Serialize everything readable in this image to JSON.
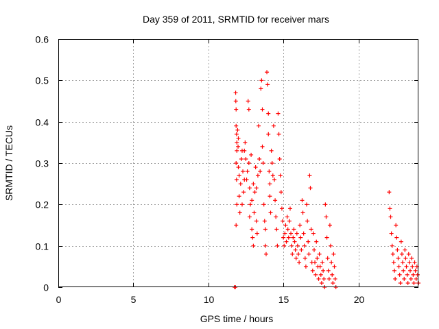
{
  "chart_data": {
    "type": "scatter",
    "title": "Day 359 of 2011, SRMTID for receiver mars",
    "xlabel": "GPS time / hours",
    "ylabel": "SRMTID / TECUs",
    "xlim": [
      0,
      24
    ],
    "ylim": [
      0,
      0.6
    ],
    "xticks": [
      0,
      5,
      10,
      15,
      20
    ],
    "yticks": [
      0,
      0.1,
      0.2,
      0.3,
      0.4,
      0.5,
      0.6
    ],
    "xtick_labels": [
      "0",
      "5",
      "10",
      "15",
      "20"
    ],
    "ytick_labels": [
      "0",
      "0.1",
      "0.2",
      "0.3",
      "0.4",
      "0.5",
      "0.6"
    ],
    "grid": true,
    "legend": "none",
    "marker": "plus",
    "color": "#ff0000",
    "series": [
      {
        "points": [
          [
            11.75,
            0.0
          ],
          [
            11.78,
            0.0
          ],
          [
            11.8,
            0.0
          ],
          [
            11.82,
            0.47
          ],
          [
            11.83,
            0.45
          ],
          [
            11.85,
            0.43
          ],
          [
            11.85,
            0.39
          ],
          [
            11.88,
            0.37
          ],
          [
            11.9,
            0.35
          ],
          [
            11.9,
            0.33
          ],
          [
            11.85,
            0.3
          ],
          [
            11.88,
            0.26
          ],
          [
            11.9,
            0.2
          ],
          [
            11.85,
            0.15
          ],
          [
            11.95,
            0.38
          ],
          [
            11.98,
            0.34
          ],
          [
            12.0,
            0.36
          ],
          [
            12.0,
            0.29
          ],
          [
            12.05,
            0.27
          ],
          [
            12.05,
            0.22
          ],
          [
            12.1,
            0.18
          ],
          [
            12.15,
            0.25
          ],
          [
            12.2,
            0.31
          ],
          [
            12.25,
            0.33
          ],
          [
            12.25,
            0.2
          ],
          [
            12.3,
            0.28
          ],
          [
            12.35,
            0.23
          ],
          [
            12.4,
            0.26
          ],
          [
            12.4,
            0.33
          ],
          [
            12.45,
            0.35
          ],
          [
            12.5,
            0.31
          ],
          [
            12.55,
            0.26
          ],
          [
            12.6,
            0.28
          ],
          [
            12.65,
            0.45
          ],
          [
            12.7,
            0.43
          ],
          [
            12.7,
            0.3
          ],
          [
            12.75,
            0.24
          ],
          [
            12.75,
            0.17
          ],
          [
            12.8,
            0.2
          ],
          [
            12.85,
            0.32
          ],
          [
            12.9,
            0.21
          ],
          [
            12.9,
            0.14
          ],
          [
            12.95,
            0.12
          ],
          [
            13.0,
            0.25
          ],
          [
            13.0,
            0.1
          ],
          [
            13.05,
            0.18
          ],
          [
            13.1,
            0.23
          ],
          [
            13.15,
            0.29
          ],
          [
            13.2,
            0.24
          ],
          [
            13.2,
            0.16
          ],
          [
            13.25,
            0.13
          ],
          [
            13.3,
            0.27
          ],
          [
            13.35,
            0.39
          ],
          [
            13.4,
            0.31
          ],
          [
            13.45,
            0.28
          ],
          [
            13.5,
            0.48
          ],
          [
            13.55,
            0.5
          ],
          [
            13.6,
            0.43
          ],
          [
            13.6,
            0.34
          ],
          [
            13.65,
            0.3
          ],
          [
            13.7,
            0.2
          ],
          [
            13.75,
            0.16
          ],
          [
            13.8,
            0.14
          ],
          [
            13.8,
            0.1
          ],
          [
            13.85,
            0.08
          ],
          [
            13.9,
            0.52
          ],
          [
            13.95,
            0.49
          ],
          [
            14.0,
            0.42
          ],
          [
            14.0,
            0.37
          ],
          [
            14.05,
            0.28
          ],
          [
            14.1,
            0.25
          ],
          [
            14.1,
            0.22
          ],
          [
            14.15,
            0.18
          ],
          [
            14.2,
            0.33
          ],
          [
            14.25,
            0.3
          ],
          [
            14.3,
            0.27
          ],
          [
            14.35,
            0.39
          ],
          [
            14.4,
            0.26
          ],
          [
            14.45,
            0.21
          ],
          [
            14.5,
            0.17
          ],
          [
            14.55,
            0.14
          ],
          [
            14.6,
            0.1
          ],
          [
            14.65,
            0.42
          ],
          [
            14.7,
            0.37
          ],
          [
            14.75,
            0.31
          ],
          [
            14.8,
            0.27
          ],
          [
            14.85,
            0.23
          ],
          [
            14.9,
            0.19
          ],
          [
            14.95,
            0.16
          ],
          [
            15.0,
            0.12
          ],
          [
            15.05,
            0.1
          ],
          [
            15.1,
            0.13
          ],
          [
            15.15,
            0.15
          ],
          [
            15.2,
            0.11
          ],
          [
            15.25,
            0.17
          ],
          [
            15.3,
            0.14
          ],
          [
            15.35,
            0.12
          ],
          [
            15.4,
            0.16
          ],
          [
            15.45,
            0.19
          ],
          [
            15.5,
            0.13
          ],
          [
            15.55,
            0.1
          ],
          [
            15.6,
            0.08
          ],
          [
            15.65,
            0.12
          ],
          [
            15.7,
            0.14
          ],
          [
            15.75,
            0.11
          ],
          [
            15.8,
            0.09
          ],
          [
            15.85,
            0.07
          ],
          [
            15.9,
            0.13
          ],
          [
            15.95,
            0.1
          ],
          [
            16.0,
            0.08
          ],
          [
            16.05,
            0.06
          ],
          [
            16.1,
            0.15
          ],
          [
            16.15,
            0.12
          ],
          [
            16.2,
            0.09
          ],
          [
            16.25,
            0.21
          ],
          [
            16.3,
            0.18
          ],
          [
            16.35,
            0.13
          ],
          [
            16.4,
            0.1
          ],
          [
            16.45,
            0.07
          ],
          [
            16.5,
            0.05
          ],
          [
            16.55,
            0.2
          ],
          [
            16.6,
            0.16
          ],
          [
            16.65,
            0.11
          ],
          [
            16.7,
            0.08
          ],
          [
            16.75,
            0.27
          ],
          [
            16.8,
            0.24
          ],
          [
            16.85,
            0.14
          ],
          [
            16.9,
            0.06
          ],
          [
            16.95,
            0.04
          ],
          [
            17.0,
            0.13
          ],
          [
            17.05,
            0.09
          ],
          [
            17.1,
            0.06
          ],
          [
            17.15,
            0.03
          ],
          [
            17.2,
            0.11
          ],
          [
            17.25,
            0.07
          ],
          [
            17.3,
            0.05
          ],
          [
            17.35,
            0.02
          ],
          [
            17.4,
            0.08
          ],
          [
            17.45,
            0.05
          ],
          [
            17.5,
            0.03
          ],
          [
            17.55,
            0.01
          ],
          [
            17.6,
            0.06
          ],
          [
            17.65,
            0.04
          ],
          [
            17.7,
            0.02
          ],
          [
            17.75,
            0.0
          ],
          [
            17.8,
            0.2
          ],
          [
            17.85,
            0.17
          ],
          [
            17.9,
            0.12
          ],
          [
            17.95,
            0.07
          ],
          [
            18.0,
            0.04
          ],
          [
            18.05,
            0.02
          ],
          [
            18.1,
            0.15
          ],
          [
            18.15,
            0.1
          ],
          [
            18.2,
            0.06
          ],
          [
            18.25,
            0.03
          ],
          [
            18.3,
            0.01
          ],
          [
            18.35,
            0.08
          ],
          [
            18.4,
            0.05
          ],
          [
            18.45,
            0.02
          ],
          [
            18.5,
            0.0
          ],
          [
            22.05,
            0.23
          ],
          [
            22.1,
            0.19
          ],
          [
            22.15,
            0.17
          ],
          [
            22.2,
            0.13
          ],
          [
            22.25,
            0.1
          ],
          [
            22.3,
            0.08
          ],
          [
            22.35,
            0.06
          ],
          [
            22.4,
            0.04
          ],
          [
            22.45,
            0.02
          ],
          [
            22.5,
            0.15
          ],
          [
            22.55,
            0.12
          ],
          [
            22.6,
            0.09
          ],
          [
            22.65,
            0.07
          ],
          [
            22.7,
            0.05
          ],
          [
            22.75,
            0.03
          ],
          [
            22.8,
            0.01
          ],
          [
            22.85,
            0.11
          ],
          [
            22.9,
            0.08
          ],
          [
            22.95,
            0.06
          ],
          [
            23.0,
            0.04
          ],
          [
            23.05,
            0.02
          ],
          [
            23.1,
            0.09
          ],
          [
            23.15,
            0.07
          ],
          [
            23.2,
            0.05
          ],
          [
            23.25,
            0.03
          ],
          [
            23.3,
            0.01
          ],
          [
            23.35,
            0.08
          ],
          [
            23.4,
            0.06
          ],
          [
            23.45,
            0.04
          ],
          [
            23.5,
            0.02
          ],
          [
            23.55,
            0.07
          ],
          [
            23.6,
            0.05
          ],
          [
            23.65,
            0.03
          ],
          [
            23.7,
            0.01
          ],
          [
            23.75,
            0.06
          ],
          [
            23.8,
            0.04
          ],
          [
            23.85,
            0.02
          ],
          [
            23.9,
            0.05
          ],
          [
            23.95,
            0.03
          ],
          [
            24.0,
            0.01
          ]
        ]
      }
    ]
  }
}
